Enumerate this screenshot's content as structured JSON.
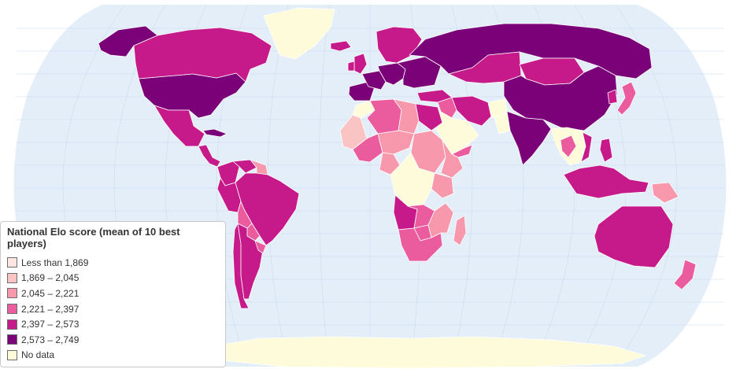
{
  "map": {
    "colors": {
      "ocean": "#e3eef8",
      "land_nodata": "#fdfbd9",
      "border": "#ffffff",
      "graticule": "#c6d9ee"
    }
  },
  "legend": {
    "title": "National Elo score (mean of 10 best players)",
    "items": [
      {
        "label": "Less than 1,869",
        "color": "#fde6e1"
      },
      {
        "label": "1,869 – 2,045",
        "color": "#fbc4c4"
      },
      {
        "label": "2,045 – 2,221",
        "color": "#f798ad"
      },
      {
        "label": "2,221 – 2,397",
        "color": "#ea5c9d"
      },
      {
        "label": "2,397 – 2,573",
        "color": "#c71a8a"
      },
      {
        "label": "2,573 – 2,749",
        "color": "#7a0177"
      },
      {
        "label": "No data",
        "color": "#fdfbd9"
      }
    ]
  },
  "chart_data": {
    "type": "choropleth",
    "title": "National Elo score (mean of 10 best players)",
    "projection": "robinson",
    "bins": [
      {
        "label": "Less than 1,869",
        "min": null,
        "max": 1869
      },
      {
        "label": "1,869 – 2,045",
        "min": 1869,
        "max": 2045
      },
      {
        "label": "2,045 – 2,221",
        "min": 2045,
        "max": 2221
      },
      {
        "label": "2,221 – 2,397",
        "min": 2221,
        "max": 2397
      },
      {
        "label": "2,397 – 2,573",
        "min": 2397,
        "max": 2573
      },
      {
        "label": "2,573 – 2,749",
        "min": 2573,
        "max": 2749
      },
      {
        "label": "No data",
        "min": null,
        "max": null
      }
    ],
    "regions": [
      {
        "id": "usa",
        "bin": 5
      },
      {
        "id": "canada",
        "bin": 4
      },
      {
        "id": "alaska",
        "bin": 5
      },
      {
        "id": "greenland",
        "bin": 6
      },
      {
        "id": "mexico",
        "bin": 4
      },
      {
        "id": "central-america",
        "bin": 4
      },
      {
        "id": "cuba",
        "bin": 5
      },
      {
        "id": "colombia",
        "bin": 4
      },
      {
        "id": "venezuela",
        "bin": 4
      },
      {
        "id": "guyanas",
        "bin": 2
      },
      {
        "id": "peru",
        "bin": 4
      },
      {
        "id": "brazil",
        "bin": 4
      },
      {
        "id": "bolivia",
        "bin": 3
      },
      {
        "id": "paraguay",
        "bin": 3
      },
      {
        "id": "chile",
        "bin": 4
      },
      {
        "id": "argentina",
        "bin": 4
      },
      {
        "id": "uruguay",
        "bin": 3
      },
      {
        "id": "iceland",
        "bin": 4
      },
      {
        "id": "uk",
        "bin": 4
      },
      {
        "id": "ireland",
        "bin": 4
      },
      {
        "id": "iberia",
        "bin": 5
      },
      {
        "id": "france",
        "bin": 5
      },
      {
        "id": "central-europe",
        "bin": 5
      },
      {
        "id": "scandinavia",
        "bin": 4
      },
      {
        "id": "eastern-europe",
        "bin": 5
      },
      {
        "id": "turkey",
        "bin": 4
      },
      {
        "id": "russia",
        "bin": 5
      },
      {
        "id": "kazakhstan",
        "bin": 4
      },
      {
        "id": "mongolia",
        "bin": 4
      },
      {
        "id": "china",
        "bin": 5
      },
      {
        "id": "india",
        "bin": 5
      },
      {
        "id": "iran",
        "bin": 4
      },
      {
        "id": "iraq",
        "bin": 3
      },
      {
        "id": "afghanistan",
        "bin": 6
      },
      {
        "id": "pakistan",
        "bin": 6
      },
      {
        "id": "arabia",
        "bin": 6
      },
      {
        "id": "yemen",
        "bin": 3
      },
      {
        "id": "japan",
        "bin": 3
      },
      {
        "id": "korea",
        "bin": 4
      },
      {
        "id": "southeast-asia",
        "bin": 6
      },
      {
        "id": "thailand",
        "bin": 3
      },
      {
        "id": "vietnam",
        "bin": 4
      },
      {
        "id": "philippines",
        "bin": 4
      },
      {
        "id": "indonesia",
        "bin": 4
      },
      {
        "id": "papua-new-guinea",
        "bin": 2
      },
      {
        "id": "australia",
        "bin": 4
      },
      {
        "id": "new-zealand",
        "bin": 3
      },
      {
        "id": "morocco",
        "bin": 6
      },
      {
        "id": "algeria",
        "bin": 3
      },
      {
        "id": "libya",
        "bin": 2
      },
      {
        "id": "egypt",
        "bin": 4
      },
      {
        "id": "sahel-west",
        "bin": 1
      },
      {
        "id": "mali",
        "bin": 3
      },
      {
        "id": "niger",
        "bin": 2
      },
      {
        "id": "nigeria",
        "bin": 2
      },
      {
        "id": "sudan",
        "bin": 2
      },
      {
        "id": "ethiopia",
        "bin": 2
      },
      {
        "id": "kenya",
        "bin": 2
      },
      {
        "id": "central-africa",
        "bin": 6
      },
      {
        "id": "angola",
        "bin": 4
      },
      {
        "id": "zambia",
        "bin": 3
      },
      {
        "id": "botswana",
        "bin": 3
      },
      {
        "id": "south-africa",
        "bin": 3
      },
      {
        "id": "mozambique",
        "bin": 2
      },
      {
        "id": "madagascar",
        "bin": 2
      },
      {
        "id": "antarctica",
        "bin": 6
      }
    ]
  }
}
